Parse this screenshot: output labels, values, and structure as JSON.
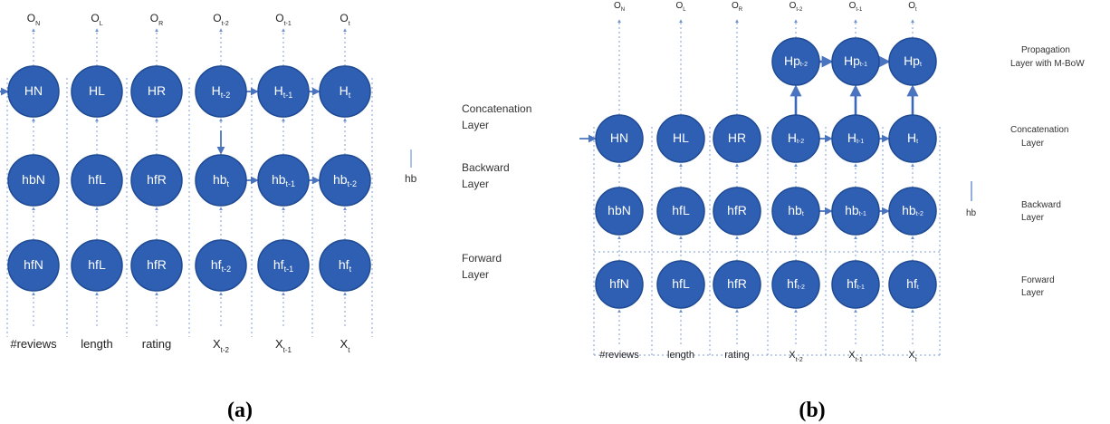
{
  "panel_a": {
    "outputs": [
      {
        "main": "O",
        "sub": "N"
      },
      {
        "main": "O",
        "sub": "L"
      },
      {
        "main": "O",
        "sub": "R"
      },
      {
        "main": "O",
        "sub": "t-2"
      },
      {
        "main": "O",
        "sub": "t-1"
      },
      {
        "main": "O",
        "sub": "t"
      }
    ],
    "concat_nodes": [
      {
        "main": "HN",
        "sub": ""
      },
      {
        "main": "HL",
        "sub": ""
      },
      {
        "main": "HR",
        "sub": ""
      },
      {
        "main": "H",
        "sub": "t-2"
      },
      {
        "main": "H",
        "sub": "t-1"
      },
      {
        "main": "H",
        "sub": "t"
      }
    ],
    "backward_nodes": [
      {
        "main": "hbN",
        "sub": ""
      },
      {
        "main": "hfL",
        "sub": ""
      },
      {
        "main": "hfR",
        "sub": ""
      },
      {
        "main": "hb",
        "sub": "t"
      },
      {
        "main": "hb",
        "sub": "t-1"
      },
      {
        "main": "hb",
        "sub": "t-2"
      }
    ],
    "forward_nodes": [
      {
        "main": "hfN",
        "sub": ""
      },
      {
        "main": "hfL",
        "sub": ""
      },
      {
        "main": "hfR",
        "sub": ""
      },
      {
        "main": "hf",
        "sub": "t-2"
      },
      {
        "main": "hf",
        "sub": "t-1"
      },
      {
        "main": "hf",
        "sub": "t"
      }
    ],
    "inputs": [
      {
        "main": "#reviews",
        "sub": ""
      },
      {
        "main": "length",
        "sub": ""
      },
      {
        "main": "rating",
        "sub": ""
      },
      {
        "main": "X",
        "sub": "t-2"
      },
      {
        "main": "X",
        "sub": "t-1"
      },
      {
        "main": "X",
        "sub": "t"
      }
    ],
    "layer_labels": {
      "concat_1": "Concatenation",
      "concat_2": "Layer",
      "backward_1": "Backward",
      "backward_2": "Layer",
      "forward_1": "Forward",
      "forward_2": "Layer"
    },
    "hb_label": "hb",
    "caption": "(a)"
  },
  "panel_b": {
    "outputs": [
      {
        "main": "O",
        "sub": "N"
      },
      {
        "main": "O",
        "sub": "L"
      },
      {
        "main": "O",
        "sub": "R"
      },
      {
        "main": "O",
        "sub": "t-2"
      },
      {
        "main": "O",
        "sub": "t-1"
      },
      {
        "main": "O",
        "sub": "t"
      }
    ],
    "propagation_nodes": [
      {
        "main": "Hp",
        "sub": "t-2"
      },
      {
        "main": "Hp",
        "sub": "t-1"
      },
      {
        "main": "Hp",
        "sub": "t"
      }
    ],
    "concat_nodes": [
      {
        "main": "HN",
        "sub": ""
      },
      {
        "main": "HL",
        "sub": ""
      },
      {
        "main": "HR",
        "sub": ""
      },
      {
        "main": "H",
        "sub": "t-2"
      },
      {
        "main": "H",
        "sub": "t-1"
      },
      {
        "main": "H",
        "sub": "t"
      }
    ],
    "backward_nodes": [
      {
        "main": "hbN",
        "sub": ""
      },
      {
        "main": "hfL",
        "sub": ""
      },
      {
        "main": "hfR",
        "sub": ""
      },
      {
        "main": "hb",
        "sub": "t"
      },
      {
        "main": "hb",
        "sub": "t-1"
      },
      {
        "main": "hb",
        "sub": "t-2"
      }
    ],
    "forward_nodes": [
      {
        "main": "hfN",
        "sub": ""
      },
      {
        "main": "hfL",
        "sub": ""
      },
      {
        "main": "hfR",
        "sub": ""
      },
      {
        "main": "hf",
        "sub": "t-2"
      },
      {
        "main": "hf",
        "sub": "t-1"
      },
      {
        "main": "hf",
        "sub": "t"
      }
    ],
    "inputs": [
      {
        "main": "#reviews",
        "sub": ""
      },
      {
        "main": "length",
        "sub": ""
      },
      {
        "main": "rating",
        "sub": ""
      },
      {
        "main": "X",
        "sub": "t-2"
      },
      {
        "main": "X",
        "sub": "t-1"
      },
      {
        "main": "X",
        "sub": "t"
      }
    ],
    "layer_labels": {
      "prop_1": "Propagation",
      "prop_2": "Layer with M-BoW",
      "concat_1": "Concatenation",
      "concat_2": "Layer",
      "backward_1": "Backward",
      "backward_2": "Layer",
      "forward_1": "Forward",
      "forward_2": "Layer"
    },
    "hb_label": "hb",
    "caption": "(b)"
  }
}
